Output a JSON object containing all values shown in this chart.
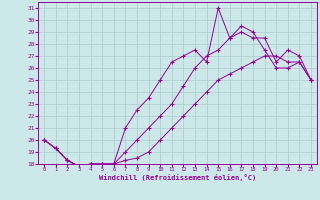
{
  "xlabel": "Windchill (Refroidissement éolien,°C)",
  "background_color": "#cce8e8",
  "line_color": "#990099",
  "grid_color": "#aacccc",
  "xlim": [
    -0.5,
    23.5
  ],
  "ylim": [
    18,
    31.5
  ],
  "xticks": [
    0,
    1,
    2,
    3,
    4,
    5,
    6,
    7,
    8,
    9,
    10,
    11,
    12,
    13,
    14,
    15,
    16,
    17,
    18,
    19,
    20,
    21,
    22,
    23
  ],
  "yticks": [
    18,
    19,
    20,
    21,
    22,
    23,
    24,
    25,
    26,
    27,
    28,
    29,
    30,
    31
  ],
  "series1_x": [
    0,
    1,
    2,
    3,
    4,
    5,
    6,
    7,
    8,
    9,
    10,
    11,
    12,
    13,
    14,
    15,
    16,
    17,
    18,
    19,
    20,
    21,
    22,
    23
  ],
  "series1_y": [
    20.0,
    19.3,
    18.3,
    17.8,
    18.0,
    18.0,
    18.0,
    18.3,
    18.5,
    19.0,
    20.0,
    21.0,
    22.0,
    23.0,
    24.0,
    25.0,
    25.5,
    26.0,
    26.5,
    27.0,
    27.0,
    26.5,
    26.5,
    25.0
  ],
  "series2_x": [
    0,
    1,
    2,
    3,
    4,
    5,
    6,
    7,
    8,
    9,
    10,
    11,
    12,
    13,
    14,
    15,
    16,
    17,
    18,
    19,
    20,
    21,
    22,
    23
  ],
  "series2_y": [
    20.0,
    19.3,
    18.3,
    17.8,
    18.0,
    18.0,
    18.0,
    21.0,
    22.5,
    23.5,
    25.0,
    26.5,
    27.0,
    27.5,
    26.5,
    31.0,
    28.5,
    29.0,
    28.5,
    28.5,
    26.5,
    27.5,
    27.0,
    25.0
  ],
  "series3_x": [
    0,
    1,
    2,
    3,
    4,
    5,
    6,
    7,
    8,
    9,
    10,
    11,
    12,
    13,
    14,
    15,
    16,
    17,
    18,
    19,
    20,
    21,
    22,
    23
  ],
  "series3_y": [
    20.0,
    19.3,
    18.3,
    17.8,
    18.0,
    18.0,
    18.0,
    19.0,
    20.0,
    21.0,
    22.0,
    23.0,
    24.5,
    26.0,
    27.0,
    27.5,
    28.5,
    29.5,
    29.0,
    27.5,
    26.0,
    26.0,
    26.5,
    25.0
  ]
}
